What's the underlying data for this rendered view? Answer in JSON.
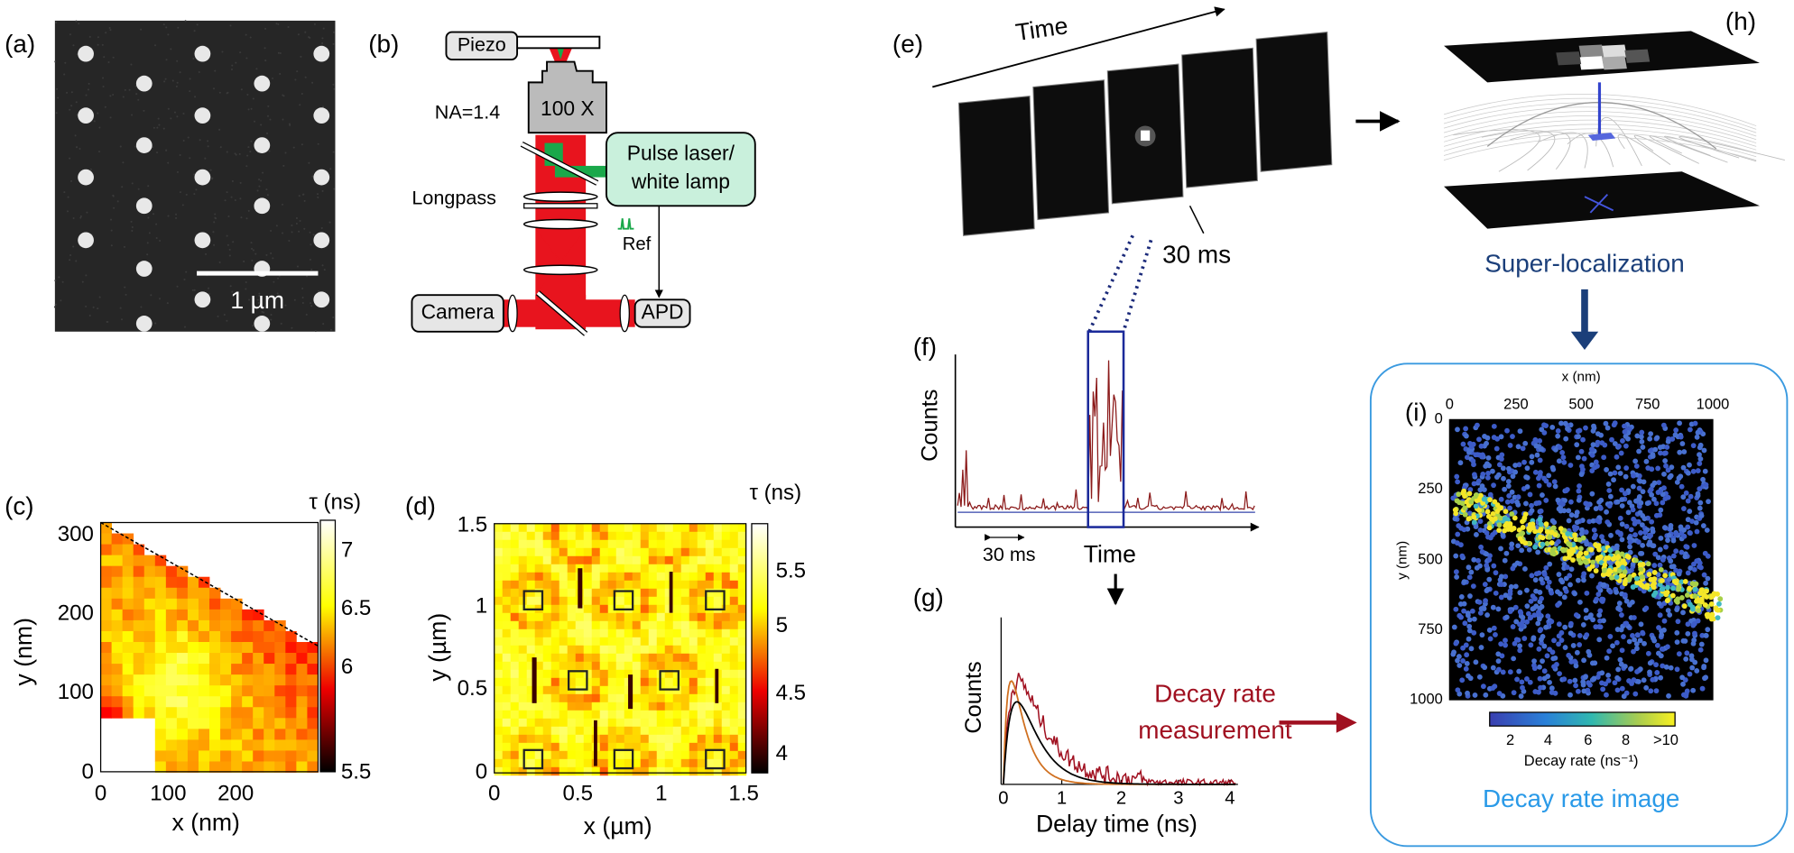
{
  "panels": {
    "a": {
      "label": "(a)",
      "scale_bar": "1 µm"
    },
    "b": {
      "label": "(b)",
      "piezo": "Piezo",
      "na": "NA=1.4",
      "objective": "100 X",
      "source": [
        "Pulse laser/",
        "white lamp"
      ],
      "filter": "Longpass",
      "reference": "Ref",
      "camera": "Camera",
      "detector": "APD"
    },
    "c": {
      "label": "(c)",
      "x_label": "x (nm)",
      "y_label": "y (nm)",
      "x_ticks": [
        "0",
        "100",
        "200"
      ],
      "y_ticks": [
        "0",
        "100",
        "200",
        "300"
      ],
      "colorbar_title": "τ (ns)",
      "colorbar_ticks": [
        "5.5",
        "6",
        "6.5",
        "7"
      ]
    },
    "d": {
      "label": "(d)",
      "x_label": "x (µm)",
      "y_label": "y (µm)",
      "x_ticks": [
        "0",
        "0.5",
        "1",
        "1.5"
      ],
      "y_ticks": [
        "0",
        "0.5",
        "1",
        "1.5"
      ],
      "colorbar_title": "τ (ns)",
      "colorbar_ticks": [
        "4",
        "4.5",
        "5",
        "5.5"
      ]
    },
    "e": {
      "label": "(e)",
      "axis": "Time",
      "frame_time": "30 ms"
    },
    "f": {
      "label": "(f)",
      "y_label": "Counts",
      "x_label": "Time",
      "bin": "30 ms"
    },
    "g": {
      "label": "(g)",
      "y_label": "Counts",
      "x_label": "Delay time (ns)",
      "x_ticks": [
        "0",
        "1",
        "2",
        "3",
        "4"
      ],
      "step": [
        "Decay rate",
        "measurement"
      ]
    },
    "h": {
      "label": "(h)",
      "step": "Super-localization"
    },
    "i": {
      "label": "(i)",
      "x_label": "x (nm)",
      "y_label": "y (nm)",
      "x_ticks": [
        "0",
        "250",
        "500",
        "750",
        "1000"
      ],
      "y_ticks": [
        "0",
        "250",
        "500",
        "750",
        "1000"
      ],
      "colorbar_label": "Decay rate (ns⁻¹)",
      "colorbar_ticks": [
        "2",
        "4",
        "6",
        "8",
        ">10"
      ],
      "caption": "Decay rate image"
    }
  }
}
